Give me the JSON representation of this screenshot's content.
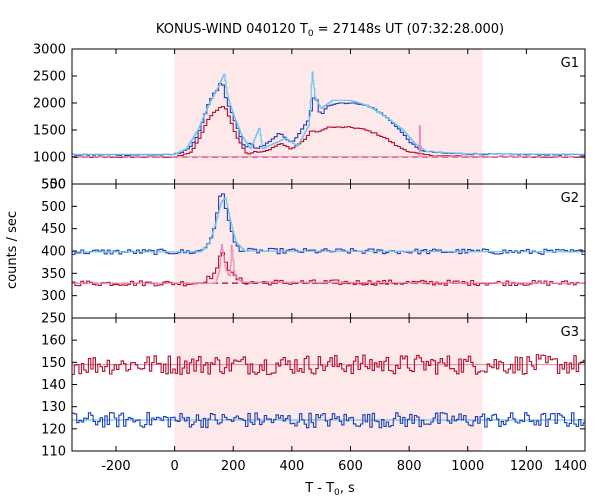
{
  "chart_data": {
    "type": "line",
    "title_main": "KONUS-WIND 040120 T",
    "title_sub": "0",
    "title_rest": " = 27148s UT (07:32:28.000)",
    "xlabel_main": "T - T",
    "xlabel_sub": "0",
    "xlabel_rest": ", s",
    "ylabel": "counts / sec",
    "xlim": [
      -350,
      1400
    ],
    "xticks": [
      "-200",
      "0",
      "200",
      "400",
      "600",
      "800",
      "1000",
      "1200",
      "1400"
    ],
    "xtick_values": [
      -200,
      0,
      200,
      400,
      600,
      800,
      1000,
      1200,
      1400
    ],
    "shade_interval": [
      0,
      1050
    ],
    "colors": {
      "shade": "#fde8ea",
      "blue_hist": "#1f3fb5",
      "cyan_model": "#6ec6ea",
      "red_hist": "#b0102a",
      "pink_model": "#f08ab8",
      "dashed": "#9a0025"
    },
    "panels": [
      {
        "label": "G1",
        "ylim": [
          500,
          3000
        ],
        "yticks": [
          "500",
          "1000",
          "1500",
          "2000",
          "2500",
          "3000"
        ],
        "ytick_values": [
          500,
          1000,
          1500,
          2000,
          2500,
          3000
        ],
        "background_blue": 1040,
        "background_red": 1000,
        "series": [
          {
            "color": "blue",
            "points": [
              [
                -350,
                1040
              ],
              [
                -10,
                1040
              ],
              [
                20,
                1080
              ],
              [
                60,
                1200
              ],
              [
                90,
                1550
              ],
              [
                110,
                1900
              ],
              [
                130,
                2150
              ],
              [
                150,
                2250
              ],
              [
                160,
                2450
              ],
              [
                170,
                2200
              ],
              [
                180,
                2000
              ],
              [
                200,
                1750
              ],
              [
                220,
                1450
              ],
              [
                240,
                1150
              ],
              [
                260,
                1300
              ],
              [
                270,
                1150
              ],
              [
                300,
                1200
              ],
              [
                330,
                1300
              ],
              [
                360,
                1450
              ],
              [
                380,
                1350
              ],
              [
                400,
                1250
              ],
              [
                440,
                1550
              ],
              [
                460,
                1700
              ],
              [
                470,
                2000
              ],
              [
                480,
                2200
              ],
              [
                490,
                1900
              ],
              [
                500,
                1750
              ],
              [
                520,
                1950
              ],
              [
                560,
                2000
              ],
              [
                600,
                2000
              ],
              [
                640,
                1980
              ],
              [
                680,
                1900
              ],
              [
                720,
                1750
              ],
              [
                760,
                1550
              ],
              [
                800,
                1300
              ],
              [
                830,
                1150
              ],
              [
                860,
                1100
              ],
              [
                920,
                1070
              ],
              [
                1000,
                1060
              ],
              [
                1100,
                1050
              ],
              [
                1400,
                1040
              ]
            ]
          },
          {
            "color": "red",
            "points": [
              [
                -350,
                1000
              ],
              [
                -10,
                1000
              ],
              [
                20,
                1020
              ],
              [
                60,
                1100
              ],
              [
                90,
                1400
              ],
              [
                120,
                1750
              ],
              [
                150,
                1900
              ],
              [
                170,
                1950
              ],
              [
                190,
                1700
              ],
              [
                210,
                1400
              ],
              [
                230,
                1200
              ],
              [
                250,
                1050
              ],
              [
                270,
                1100
              ],
              [
                300,
                1100
              ],
              [
                330,
                1150
              ],
              [
                360,
                1250
              ],
              [
                380,
                1200
              ],
              [
                400,
                1150
              ],
              [
                440,
                1300
              ],
              [
                470,
                1500
              ],
              [
                490,
                1450
              ],
              [
                520,
                1550
              ],
              [
                560,
                1550
              ],
              [
                600,
                1550
              ],
              [
                640,
                1520
              ],
              [
                680,
                1450
              ],
              [
                720,
                1350
              ],
              [
                760,
                1200
              ],
              [
                800,
                1100
              ],
              [
                840,
                1050
              ],
              [
                900,
                1020
              ],
              [
                1000,
                1010
              ],
              [
                1400,
                1000
              ]
            ]
          },
          {
            "color": "cyan",
            "points": [
              [
                -350,
                1050
              ],
              [
                0,
                1050
              ],
              [
                40,
                1150
              ],
              [
                80,
                1500
              ],
              [
                120,
                2000
              ],
              [
                150,
                2300
              ],
              [
                170,
                2550
              ],
              [
                180,
                2150
              ],
              [
                200,
                1800
              ],
              [
                230,
                1400
              ],
              [
                260,
                1150
              ],
              [
                290,
                1550
              ],
              [
                300,
                1150
              ],
              [
                340,
                1250
              ],
              [
                380,
                1350
              ],
              [
                420,
                1200
              ],
              [
                460,
                1600
              ],
              [
                470,
                2600
              ],
              [
                480,
                2100
              ],
              [
                500,
                1900
              ],
              [
                540,
                2050
              ],
              [
                600,
                2050
              ],
              [
                660,
                1950
              ],
              [
                720,
                1750
              ],
              [
                780,
                1500
              ],
              [
                820,
                1250
              ],
              [
                860,
                1100
              ],
              [
                1000,
                1060
              ],
              [
                1400,
                1050
              ]
            ]
          },
          {
            "color": "pink",
            "points": [
              [
                -350,
                1005
              ],
              [
                820,
                1005
              ],
              [
                836,
                1005
              ],
              [
                837,
                2150
              ],
              [
                840,
                1005
              ],
              [
                1400,
                1005
              ]
            ]
          }
        ]
      },
      {
        "label": "G2",
        "ylim": [
          250,
          550
        ],
        "yticks": [
          "250",
          "300",
          "350",
          "400",
          "450",
          "500",
          "550"
        ],
        "ytick_values": [
          250,
          300,
          350,
          400,
          450,
          500,
          550
        ],
        "background_blue": 398,
        "background_red": 328,
        "series": [
          {
            "color": "blue",
            "points": [
              [
                -350,
                398
              ],
              [
                80,
                398
              ],
              [
                110,
                410
              ],
              [
                130,
                440
              ],
              [
                145,
                480
              ],
              [
                155,
                520
              ],
              [
                165,
                530
              ],
              [
                175,
                500
              ],
              [
                190,
                450
              ],
              [
                210,
                410
              ],
              [
                240,
                400
              ],
              [
                1400,
                398
              ]
            ]
          },
          {
            "color": "red",
            "points": [
              [
                -350,
                328
              ],
              [
                80,
                328
              ],
              [
                120,
                340
              ],
              [
                150,
                360
              ],
              [
                160,
                410
              ],
              [
                170,
                390
              ],
              [
                190,
                350
              ],
              [
                220,
                335
              ],
              [
                250,
                330
              ],
              [
                1400,
                328
              ]
            ]
          },
          {
            "color": "cyan",
            "points": [
              [
                -350,
                398
              ],
              [
                90,
                398
              ],
              [
                120,
                420
              ],
              [
                140,
                460
              ],
              [
                160,
                510
              ],
              [
                175,
                520
              ],
              [
                190,
                470
              ],
              [
                210,
                420
              ],
              [
                240,
                400
              ],
              [
                1400,
                398
              ]
            ]
          },
          {
            "color": "pink",
            "points": [
              [
                -350,
                328
              ],
              [
                140,
                328
              ],
              [
                155,
                360
              ],
              [
                160,
                420
              ],
              [
                175,
                360
              ],
              [
                185,
                345
              ],
              [
                190,
                345
              ],
              [
                195,
                420
              ],
              [
                205,
                345
              ],
              [
                230,
                330
              ],
              [
                1400,
                328
              ]
            ]
          }
        ]
      },
      {
        "label": "G3",
        "ylim": [
          110,
          170
        ],
        "yticks": [
          "110",
          "120",
          "130",
          "140",
          "150",
          "160"
        ],
        "ytick_values": [
          110,
          120,
          130,
          140,
          150,
          160
        ],
        "background_blue": 124,
        "background_red": 149,
        "series": []
      }
    ]
  }
}
